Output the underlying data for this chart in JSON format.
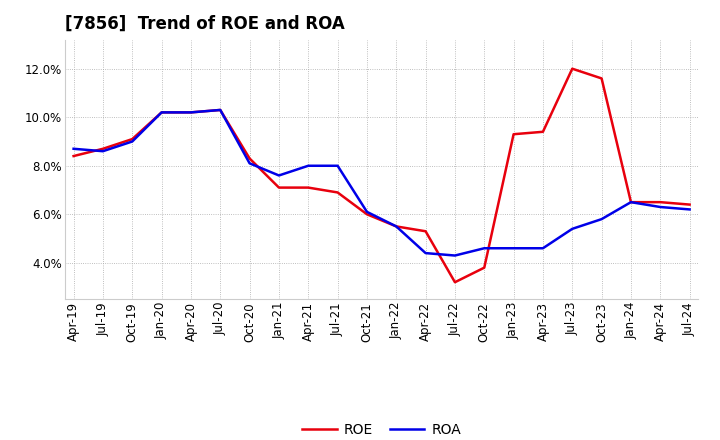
{
  "title": "[7856]  Trend of ROE and ROA",
  "x_labels": [
    "Apr-19",
    "Jul-19",
    "Oct-19",
    "Jan-20",
    "Apr-20",
    "Jul-20",
    "Oct-20",
    "Jan-21",
    "Apr-21",
    "Jul-21",
    "Oct-21",
    "Jan-22",
    "Apr-22",
    "Jul-22",
    "Oct-22",
    "Jan-23",
    "Apr-23",
    "Jul-23",
    "Oct-23",
    "Jan-24",
    "Apr-24",
    "Jul-24"
  ],
  "roe": [
    8.4,
    8.7,
    9.1,
    10.2,
    10.2,
    10.3,
    8.3,
    7.1,
    7.1,
    6.9,
    6.0,
    5.5,
    5.3,
    3.2,
    3.8,
    9.3,
    9.4,
    12.0,
    11.6,
    6.5,
    6.5,
    6.4
  ],
  "roa": [
    8.7,
    8.6,
    9.0,
    10.2,
    10.2,
    10.3,
    8.1,
    7.6,
    8.0,
    8.0,
    6.1,
    5.5,
    4.4,
    4.3,
    4.6,
    4.6,
    4.6,
    5.4,
    5.8,
    6.5,
    6.3,
    6.2
  ],
  "roe_color": "#e8000d",
  "roa_color": "#0000e8",
  "ylim": [
    2.5,
    13.2
  ],
  "yticks": [
    4.0,
    6.0,
    8.0,
    10.0,
    12.0
  ],
  "background_color": "#ffffff",
  "plot_bg_color": "#ffffff",
  "grid_color": "#aaaaaa",
  "line_width": 1.8,
  "title_fontsize": 12,
  "legend_fontsize": 10,
  "tick_fontsize": 8.5
}
